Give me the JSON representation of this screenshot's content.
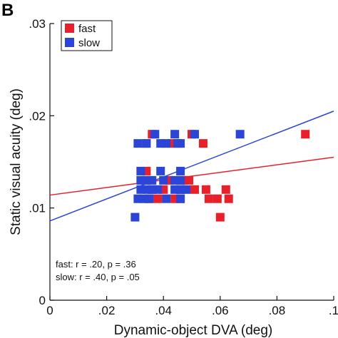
{
  "panel_label": "B",
  "chart_data": {
    "type": "scatter",
    "xlabel": "Dynamic-object DVA (deg)",
    "ylabel": "Static visual acuity (deg)",
    "xlim": [
      0,
      0.1
    ],
    "ylim": [
      0,
      0.03
    ],
    "x_ticks": [
      0,
      0.02,
      0.04,
      0.06,
      0.08,
      0.1
    ],
    "x_tick_labels": [
      "0",
      ".02",
      ".04",
      ".06",
      ".08",
      ".1"
    ],
    "y_ticks": [
      0,
      0.01,
      0.02,
      0.03
    ],
    "y_tick_labels": [
      "0",
      ".01",
      ".02",
      ".03"
    ],
    "legend": {
      "placement": "top-left",
      "entries": [
        "fast",
        "slow"
      ]
    },
    "series": [
      {
        "name": "fast",
        "color": "#e8202a",
        "marker": "square",
        "points": [
          [
            0.034,
            0.017
          ],
          [
            0.036,
            0.018
          ],
          [
            0.043,
            0.017
          ],
          [
            0.05,
            0.018
          ],
          [
            0.054,
            0.017
          ],
          [
            0.09,
            0.018
          ],
          [
            0.034,
            0.014
          ],
          [
            0.034,
            0.013
          ],
          [
            0.042,
            0.013
          ],
          [
            0.047,
            0.013
          ],
          [
            0.049,
            0.013
          ],
          [
            0.036,
            0.012
          ],
          [
            0.04,
            0.012
          ],
          [
            0.046,
            0.012
          ],
          [
            0.051,
            0.012
          ],
          [
            0.055,
            0.012
          ],
          [
            0.062,
            0.012
          ],
          [
            0.035,
            0.011
          ],
          [
            0.038,
            0.011
          ],
          [
            0.044,
            0.011
          ],
          [
            0.046,
            0.011
          ],
          [
            0.056,
            0.011
          ],
          [
            0.059,
            0.011
          ],
          [
            0.063,
            0.011
          ],
          [
            0.06,
            0.009
          ]
        ],
        "fit": {
          "intercept": 0.0114,
          "slope": 0.041
        },
        "stats_text": "fast: r = .20, p = .36"
      },
      {
        "name": "slow",
        "color": "#2a45d8",
        "marker": "square",
        "points": [
          [
            0.031,
            0.017
          ],
          [
            0.034,
            0.017
          ],
          [
            0.037,
            0.018
          ],
          [
            0.039,
            0.017
          ],
          [
            0.041,
            0.017
          ],
          [
            0.044,
            0.018
          ],
          [
            0.045,
            0.017
          ],
          [
            0.046,
            0.017
          ],
          [
            0.051,
            0.018
          ],
          [
            0.067,
            0.018
          ],
          [
            0.032,
            0.014
          ],
          [
            0.039,
            0.014
          ],
          [
            0.046,
            0.014
          ],
          [
            0.032,
            0.013
          ],
          [
            0.034,
            0.013
          ],
          [
            0.036,
            0.013
          ],
          [
            0.04,
            0.013
          ],
          [
            0.044,
            0.013
          ],
          [
            0.046,
            0.013
          ],
          [
            0.032,
            0.012
          ],
          [
            0.034,
            0.012
          ],
          [
            0.036,
            0.012
          ],
          [
            0.038,
            0.012
          ],
          [
            0.044,
            0.012
          ],
          [
            0.046,
            0.012
          ],
          [
            0.048,
            0.012
          ],
          [
            0.031,
            0.011
          ],
          [
            0.033,
            0.011
          ],
          [
            0.035,
            0.011
          ],
          [
            0.041,
            0.011
          ],
          [
            0.046,
            0.011
          ],
          [
            0.03,
            0.009
          ]
        ],
        "fit": {
          "intercept": 0.0086,
          "slope": 0.119
        },
        "stats_text": "slow: r = .40, p = .05"
      }
    ]
  }
}
